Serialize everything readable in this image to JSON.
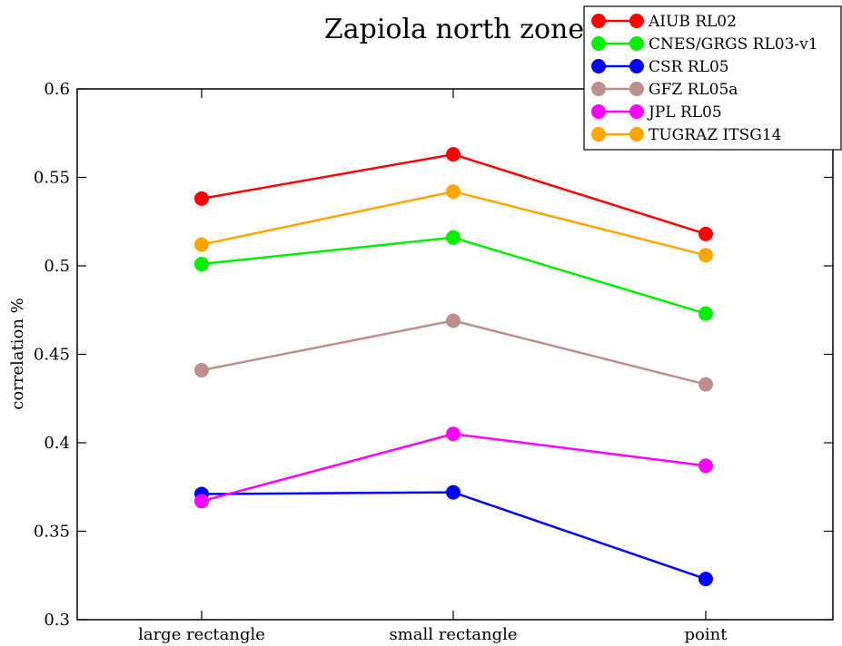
{
  "chart_data": {
    "type": "line",
    "title": "Zapiola north zone",
    "xlabel": "",
    "ylabel": "correlation %",
    "categories": [
      "large rectangle",
      "small rectangle",
      "point"
    ],
    "ylim": [
      0.3,
      0.6
    ],
    "yticks": [
      "0.3",
      "0.35",
      "0.4",
      "0.45",
      "0.5",
      "0.55",
      "0.6"
    ],
    "grid": false,
    "legend_position": "top-right",
    "series": [
      {
        "name": "AIUB RL02",
        "color": "#ff0000",
        "values": [
          0.538,
          0.563,
          0.518
        ]
      },
      {
        "name": "CNES/GRGS RL03-v1",
        "color": "#00ee00",
        "values": [
          0.501,
          0.516,
          0.473
        ]
      },
      {
        "name": "CSR RL05",
        "color": "#0000ff",
        "values": [
          0.371,
          0.372,
          0.323
        ]
      },
      {
        "name": "GFZ RL05a",
        "color": "#bc8f8f",
        "values": [
          0.441,
          0.469,
          0.433
        ]
      },
      {
        "name": "JPL RL05",
        "color": "#ff00ff",
        "values": [
          0.367,
          0.405,
          0.387
        ]
      },
      {
        "name": "TUGRAZ ITSG14",
        "color": "#ffa500",
        "values": [
          0.512,
          0.542,
          0.506
        ]
      }
    ]
  }
}
